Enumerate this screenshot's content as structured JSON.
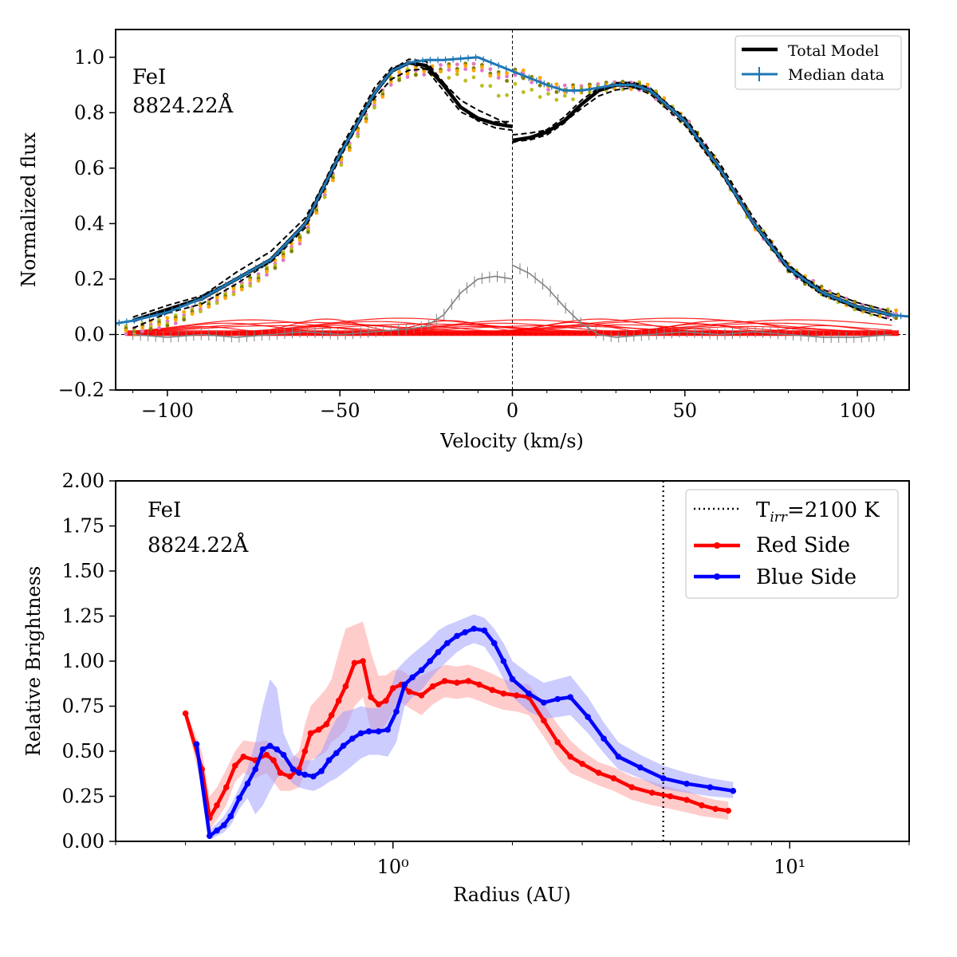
{
  "colors": {
    "model": "#000000",
    "median": "#1f77b4",
    "components": "#ff0000",
    "residual": "#808080",
    "red_side": "#ff0000",
    "blue_side": "#0000ff",
    "red_band": "#ff9999",
    "blue_band": "#9999ff",
    "dots": [
      "#e377c2",
      "#bcbd22",
      "#808000",
      "#ffa500"
    ]
  },
  "chart_data": [
    {
      "type": "line",
      "title": "",
      "xlabel": "Velocity (km/s)",
      "ylabel": "Normalized flux",
      "xlim": [
        -115,
        115
      ],
      "ylim": [
        -0.2,
        1.1
      ],
      "xticks": [
        -100,
        -50,
        0,
        50,
        100
      ],
      "xtick_labels": [
        "−100",
        "−50",
        "0",
        "50",
        "100"
      ],
      "yticks": [
        -0.2,
        0.0,
        0.2,
        0.4,
        0.6,
        0.8,
        1.0
      ],
      "ytick_labels": [
        "−0.2",
        "0.0",
        "0.2",
        "0.4",
        "0.6",
        "0.8",
        "1.0"
      ],
      "annotation_line1": "FeI",
      "annotation_line2": "8824.22Å",
      "legend": {
        "position": "top-right",
        "entries": [
          "Total Model",
          "Median data"
        ]
      },
      "zero_lines": {
        "x": 0,
        "y": 0
      },
      "series": [
        {
          "name": "Total Model (blue side)",
          "x": [
            -110,
            -100,
            -90,
            -80,
            -70,
            -60,
            -50,
            -40,
            -35,
            -30,
            -25,
            -20,
            -15,
            -10,
            -5,
            0
          ],
          "y": [
            0.05,
            0.09,
            0.13,
            0.2,
            0.27,
            0.4,
            0.65,
            0.87,
            0.95,
            0.98,
            0.97,
            0.9,
            0.82,
            0.78,
            0.76,
            0.75
          ]
        },
        {
          "name": "Total Model (red side)",
          "x": [
            0,
            5,
            10,
            15,
            20,
            25,
            30,
            35,
            40,
            50,
            60,
            70,
            80,
            90,
            100,
            110
          ],
          "y": [
            0.7,
            0.71,
            0.73,
            0.77,
            0.83,
            0.88,
            0.9,
            0.9,
            0.88,
            0.77,
            0.6,
            0.4,
            0.24,
            0.15,
            0.1,
            0.07
          ]
        },
        {
          "name": "Median data",
          "x": [
            -115,
            -110,
            -100,
            -90,
            -80,
            -70,
            -60,
            -50,
            -40,
            -35,
            -30,
            -25,
            -20,
            -10,
            0,
            10,
            15,
            20,
            25,
            30,
            35,
            40,
            50,
            60,
            70,
            80,
            90,
            100,
            110,
            115
          ],
          "y": [
            0.04,
            0.05,
            0.08,
            0.13,
            0.2,
            0.27,
            0.4,
            0.65,
            0.87,
            0.95,
            0.98,
            0.99,
            0.99,
            1.0,
            0.95,
            0.9,
            0.88,
            0.88,
            0.89,
            0.9,
            0.9,
            0.88,
            0.77,
            0.6,
            0.4,
            0.24,
            0.15,
            0.1,
            0.07,
            0.065
          ]
        },
        {
          "name": "Residual",
          "x": [
            -110,
            -100,
            -90,
            -80,
            -70,
            -60,
            -50,
            -40,
            -30,
            -25,
            -20,
            -15,
            -10,
            -5,
            0,
            0,
            5,
            10,
            15,
            20,
            25,
            30,
            40,
            50,
            60,
            70,
            80,
            90,
            100,
            110
          ],
          "y": [
            0.0,
            -0.01,
            0.0,
            -0.01,
            0.0,
            0.01,
            0.0,
            0.01,
            0.02,
            0.03,
            0.07,
            0.15,
            0.2,
            0.21,
            0.2,
            0.25,
            0.22,
            0.17,
            0.1,
            0.04,
            0.0,
            -0.01,
            0.0,
            0.01,
            0.0,
            0.01,
            0.0,
            -0.01,
            -0.01,
            0.0
          ]
        }
      ]
    },
    {
      "type": "line",
      "title": "",
      "xlabel": "Radius (AU)",
      "ylabel": "Relative Brightness",
      "xscale": "log",
      "xlim": [
        0.2,
        20
      ],
      "ylim": [
        0.0,
        2.0
      ],
      "xticks": [
        1,
        10
      ],
      "xtick_labels": [
        "10⁰",
        "10¹"
      ],
      "yticks": [
        0.0,
        0.25,
        0.5,
        0.75,
        1.0,
        1.25,
        1.5,
        1.75,
        2.0
      ],
      "ytick_labels": [
        "0.00",
        "0.25",
        "0.50",
        "0.75",
        "1.00",
        "1.25",
        "1.50",
        "1.75",
        "2.00"
      ],
      "annotation_line1": "FeI",
      "annotation_line2": "8824.22Å",
      "vline": {
        "x": 4.8,
        "label_main": "T",
        "label_sub": "irr",
        "label_rest": "=2100 K"
      },
      "legend": {
        "position": "top-right",
        "entries": [
          "Red Side",
          "Blue Side"
        ]
      },
      "series": [
        {
          "name": "Red Side",
          "x": [
            0.3,
            0.33,
            0.345,
            0.36,
            0.38,
            0.4,
            0.42,
            0.45,
            0.48,
            0.5,
            0.52,
            0.55,
            0.58,
            0.6,
            0.62,
            0.65,
            0.68,
            0.7,
            0.73,
            0.76,
            0.8,
            0.84,
            0.88,
            0.92,
            0.96,
            1.0,
            1.05,
            1.1,
            1.18,
            1.26,
            1.35,
            1.45,
            1.55,
            1.65,
            1.78,
            1.9,
            2.05,
            2.2,
            2.4,
            2.6,
            2.8,
            3.0,
            3.3,
            3.6,
            4.0,
            4.5,
            5.0,
            5.5,
            6.0,
            6.5,
            7.0
          ],
          "y": [
            0.71,
            0.4,
            0.13,
            0.2,
            0.3,
            0.42,
            0.47,
            0.45,
            0.48,
            0.45,
            0.38,
            0.36,
            0.4,
            0.5,
            0.6,
            0.62,
            0.65,
            0.7,
            0.78,
            0.86,
            0.99,
            1.0,
            0.8,
            0.76,
            0.78,
            0.85,
            0.87,
            0.83,
            0.81,
            0.86,
            0.89,
            0.88,
            0.89,
            0.87,
            0.84,
            0.82,
            0.81,
            0.8,
            0.67,
            0.55,
            0.47,
            0.43,
            0.38,
            0.35,
            0.3,
            0.27,
            0.25,
            0.23,
            0.2,
            0.18,
            0.17
          ]
        },
        {
          "name": "Red Side upper",
          "x": [
            0.3,
            0.33,
            0.345,
            0.36,
            0.38,
            0.4,
            0.42,
            0.45,
            0.48,
            0.5,
            0.52,
            0.55,
            0.58,
            0.6,
            0.62,
            0.65,
            0.68,
            0.7,
            0.73,
            0.76,
            0.8,
            0.84,
            0.88,
            0.92,
            0.96,
            1.0,
            1.05,
            1.1,
            1.18,
            1.26,
            1.35,
            1.45,
            1.55,
            1.65,
            1.78,
            1.9,
            2.05,
            2.2,
            2.4,
            2.6,
            2.8,
            3.0,
            3.3,
            3.6,
            4.0,
            4.5,
            5.0,
            5.5,
            6.0,
            6.5,
            7.0
          ],
          "y": [
            0.73,
            0.5,
            0.25,
            0.3,
            0.4,
            0.5,
            0.56,
            0.55,
            0.56,
            0.52,
            0.46,
            0.45,
            0.5,
            0.65,
            0.75,
            0.8,
            0.85,
            0.9,
            1.05,
            1.18,
            1.2,
            1.22,
            1.05,
            0.92,
            0.92,
            0.95,
            0.95,
            0.92,
            0.92,
            0.95,
            0.98,
            0.97,
            0.98,
            0.96,
            0.93,
            0.9,
            0.88,
            0.87,
            0.76,
            0.65,
            0.56,
            0.5,
            0.44,
            0.41,
            0.36,
            0.33,
            0.3,
            0.28,
            0.25,
            0.23,
            0.22
          ]
        },
        {
          "name": "Red Side lower",
          "x": [
            0.3,
            0.33,
            0.345,
            0.36,
            0.38,
            0.4,
            0.42,
            0.45,
            0.48,
            0.5,
            0.52,
            0.55,
            0.58,
            0.6,
            0.62,
            0.65,
            0.68,
            0.7,
            0.73,
            0.76,
            0.8,
            0.84,
            0.88,
            0.92,
            0.96,
            1.0,
            1.05,
            1.1,
            1.18,
            1.26,
            1.35,
            1.45,
            1.55,
            1.65,
            1.78,
            1.9,
            2.05,
            2.2,
            2.4,
            2.6,
            2.8,
            3.0,
            3.3,
            3.6,
            4.0,
            4.5,
            5.0,
            5.5,
            6.0,
            6.5,
            7.0
          ],
          "y": [
            0.68,
            0.3,
            0.06,
            0.12,
            0.2,
            0.33,
            0.38,
            0.35,
            0.38,
            0.33,
            0.28,
            0.28,
            0.3,
            0.38,
            0.45,
            0.47,
            0.5,
            0.55,
            0.58,
            0.62,
            0.75,
            0.8,
            0.62,
            0.6,
            0.65,
            0.72,
            0.77,
            0.74,
            0.7,
            0.76,
            0.8,
            0.79,
            0.8,
            0.78,
            0.75,
            0.73,
            0.72,
            0.7,
            0.58,
            0.46,
            0.38,
            0.35,
            0.31,
            0.28,
            0.23,
            0.2,
            0.18,
            0.16,
            0.14,
            0.13,
            0.12
          ]
        },
        {
          "name": "Blue Side",
          "x": [
            0.32,
            0.345,
            0.36,
            0.375,
            0.39,
            0.41,
            0.43,
            0.45,
            0.47,
            0.49,
            0.51,
            0.53,
            0.56,
            0.58,
            0.6,
            0.63,
            0.66,
            0.69,
            0.72,
            0.75,
            0.79,
            0.83,
            0.87,
            0.92,
            0.97,
            1.02,
            1.07,
            1.12,
            1.18,
            1.24,
            1.3,
            1.37,
            1.45,
            1.52,
            1.6,
            1.7,
            1.8,
            1.9,
            2.0,
            2.2,
            2.4,
            2.6,
            2.8,
            3.1,
            3.4,
            3.7,
            4.2,
            4.8,
            5.5,
            6.3,
            7.2
          ],
          "y": [
            0.54,
            0.03,
            0.06,
            0.09,
            0.14,
            0.24,
            0.32,
            0.4,
            0.51,
            0.53,
            0.51,
            0.48,
            0.4,
            0.38,
            0.37,
            0.36,
            0.39,
            0.45,
            0.49,
            0.53,
            0.57,
            0.6,
            0.61,
            0.61,
            0.62,
            0.72,
            0.87,
            0.91,
            0.95,
            1.0,
            1.05,
            1.1,
            1.14,
            1.16,
            1.18,
            1.17,
            1.1,
            1.0,
            0.9,
            0.82,
            0.77,
            0.79,
            0.8,
            0.69,
            0.57,
            0.47,
            0.41,
            0.35,
            0.32,
            0.3,
            0.28
          ]
        },
        {
          "name": "Blue Side upper",
          "x": [
            0.32,
            0.345,
            0.36,
            0.375,
            0.39,
            0.41,
            0.43,
            0.45,
            0.47,
            0.49,
            0.51,
            0.53,
            0.56,
            0.58,
            0.6,
            0.63,
            0.66,
            0.69,
            0.72,
            0.75,
            0.79,
            0.83,
            0.87,
            0.92,
            0.97,
            1.02,
            1.07,
            1.12,
            1.18,
            1.24,
            1.3,
            1.37,
            1.45,
            1.52,
            1.6,
            1.7,
            1.8,
            1.9,
            2.0,
            2.2,
            2.4,
            2.6,
            2.8,
            3.1,
            3.4,
            3.7,
            4.2,
            4.8,
            5.5,
            6.3,
            7.2
          ],
          "y": [
            0.55,
            0.06,
            0.1,
            0.14,
            0.2,
            0.3,
            0.4,
            0.55,
            0.75,
            0.9,
            0.85,
            0.6,
            0.48,
            0.46,
            0.45,
            0.45,
            0.5,
            0.6,
            0.68,
            0.72,
            0.73,
            0.75,
            0.74,
            0.74,
            0.78,
            0.95,
            1.0,
            1.04,
            1.08,
            1.12,
            1.17,
            1.2,
            1.22,
            1.24,
            1.26,
            1.24,
            1.18,
            1.1,
            1.0,
            0.93,
            0.88,
            0.9,
            0.92,
            0.8,
            0.66,
            0.55,
            0.48,
            0.42,
            0.38,
            0.35,
            0.33
          ]
        },
        {
          "name": "Blue Side lower",
          "x": [
            0.32,
            0.345,
            0.36,
            0.375,
            0.39,
            0.41,
            0.43,
            0.45,
            0.47,
            0.49,
            0.51,
            0.53,
            0.56,
            0.58,
            0.6,
            0.63,
            0.66,
            0.69,
            0.72,
            0.75,
            0.79,
            0.83,
            0.87,
            0.92,
            0.97,
            1.02,
            1.07,
            1.12,
            1.18,
            1.24,
            1.3,
            1.37,
            1.45,
            1.52,
            1.6,
            1.7,
            1.8,
            1.9,
            2.0,
            2.2,
            2.4,
            2.6,
            2.8,
            3.1,
            3.4,
            3.7,
            4.2,
            4.8,
            5.5,
            6.3,
            7.2
          ],
          "y": [
            0.53,
            0.01,
            0.03,
            0.05,
            0.09,
            0.18,
            0.24,
            0.15,
            0.2,
            0.28,
            0.35,
            0.38,
            0.32,
            0.3,
            0.29,
            0.28,
            0.3,
            0.33,
            0.35,
            0.38,
            0.42,
            0.46,
            0.48,
            0.48,
            0.47,
            0.55,
            0.75,
            0.8,
            0.84,
            0.9,
            0.95,
            1.0,
            1.05,
            1.08,
            1.1,
            1.08,
            1.0,
            0.9,
            0.8,
            0.72,
            0.68,
            0.69,
            0.7,
            0.6,
            0.49,
            0.4,
            0.35,
            0.29,
            0.27,
            0.25,
            0.24
          ]
        }
      ]
    }
  ]
}
